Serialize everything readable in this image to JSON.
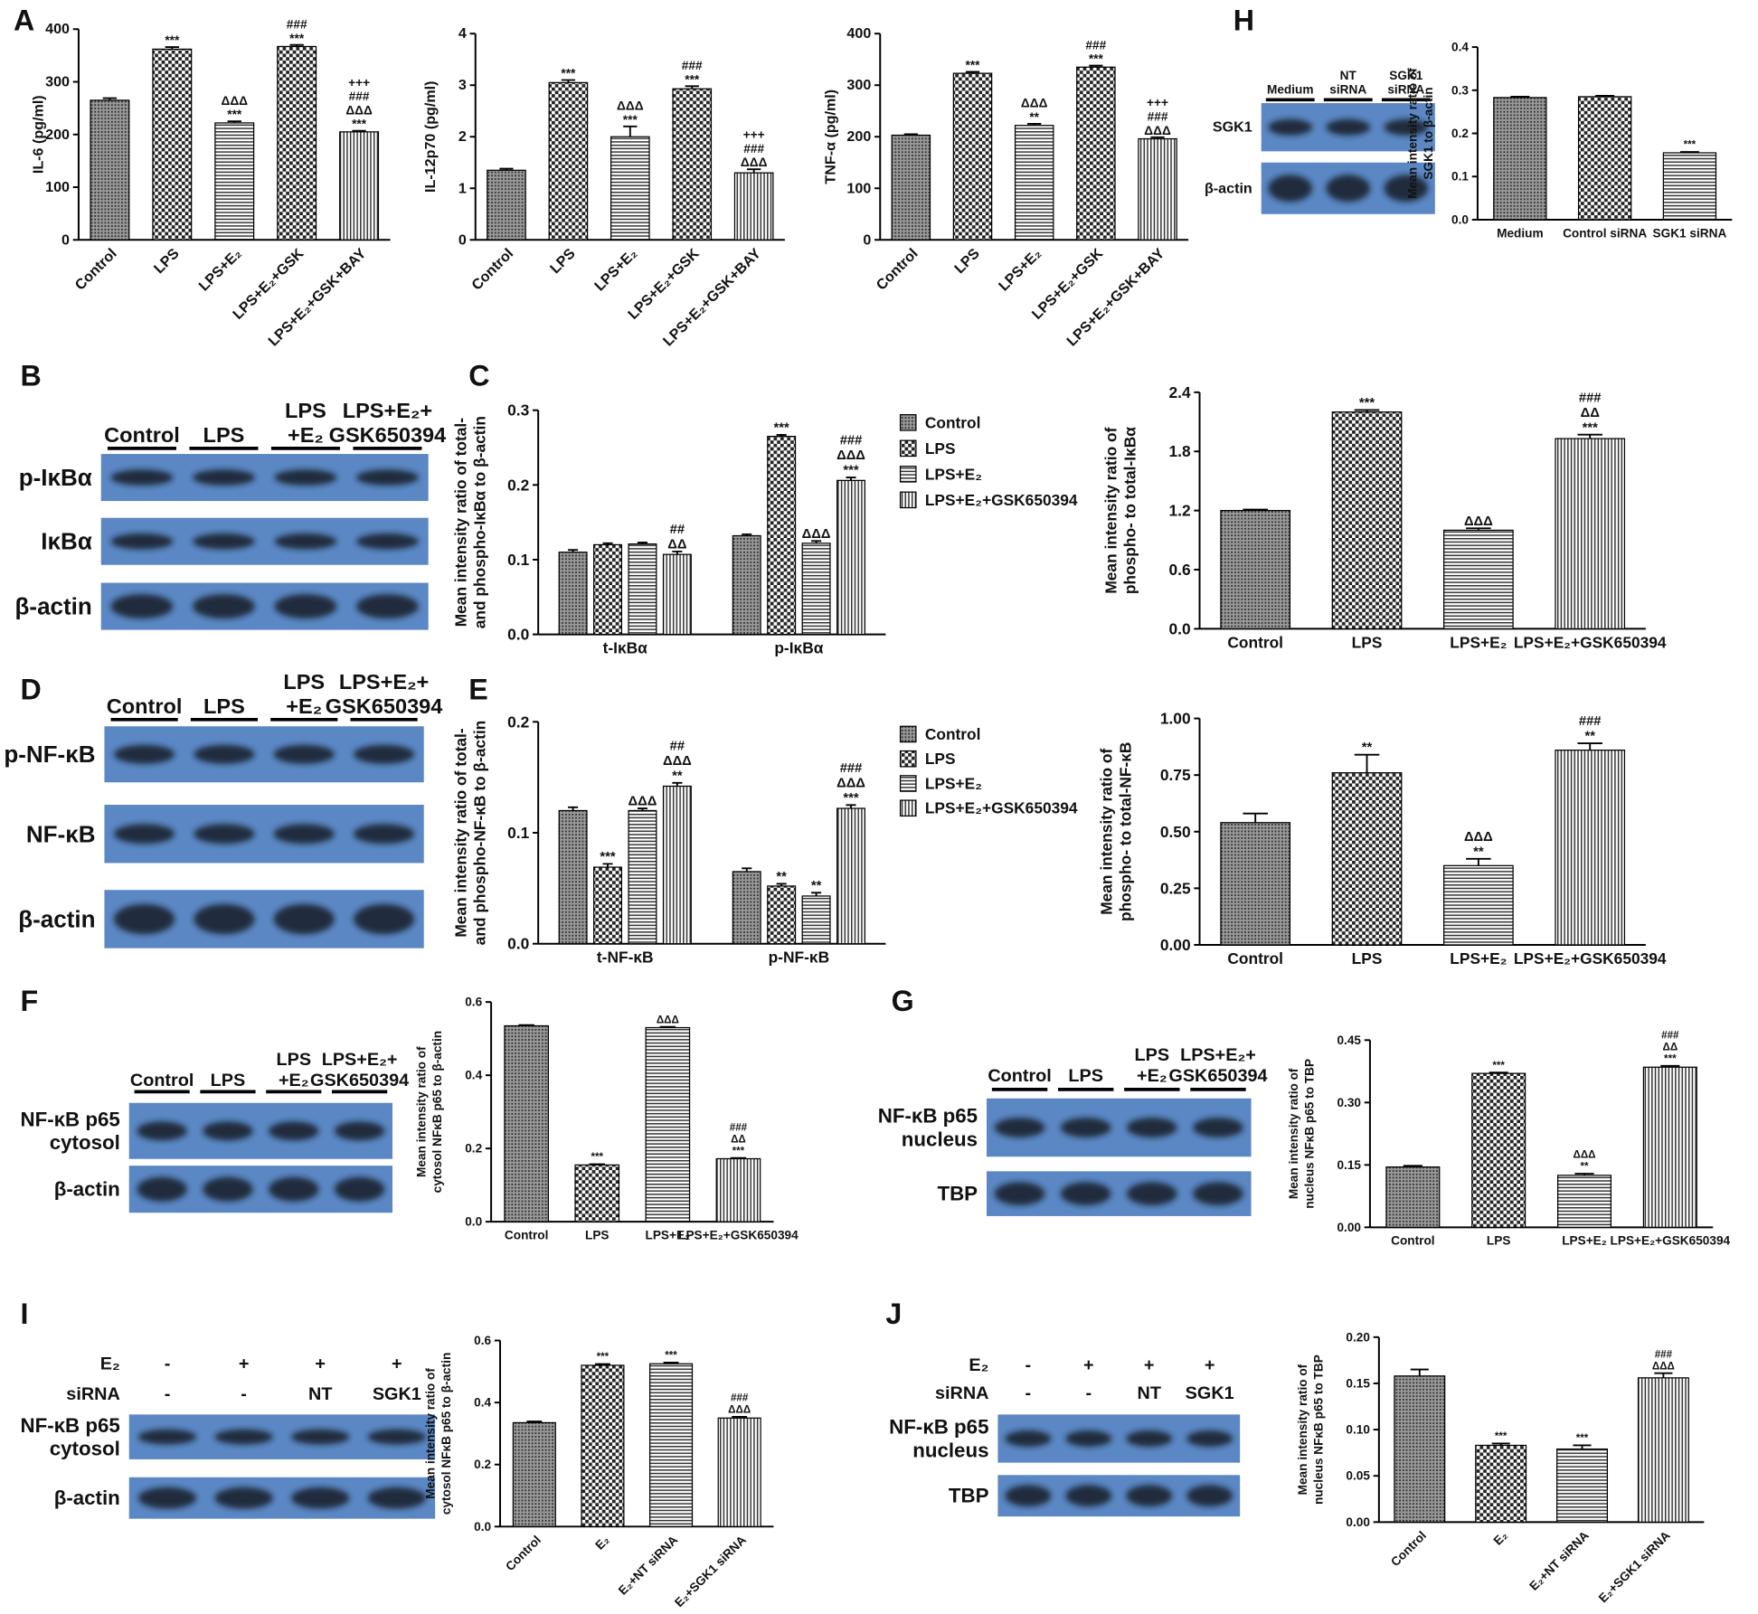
{
  "panel_labels": [
    "A",
    "B",
    "C",
    "D",
    "E",
    "F",
    "G",
    "H",
    "I",
    "J"
  ],
  "blots": [
    {
      "lanes": [
        [
          "Control"
        ],
        [
          "LPS"
        ],
        [
          "LPS",
          "+E₂"
        ],
        [
          "LPS+E₂+",
          "GSK650394"
        ]
      ],
      "rows": [
        [
          "p-IκBα"
        ],
        [
          "IκBα"
        ],
        [
          "β-actin"
        ]
      ]
    },
    {
      "lanes": [
        [
          "Control"
        ],
        [
          "LPS"
        ],
        [
          "LPS",
          "+E₂"
        ],
        [
          "LPS+E₂+",
          "GSK650394"
        ]
      ],
      "rows": [
        [
          "p-NF-κB"
        ],
        [
          "NF-κB"
        ],
        [
          "β-actin"
        ]
      ]
    },
    {
      "lanes": [
        [
          "Control"
        ],
        [
          "LPS"
        ],
        [
          "LPS",
          "+E₂"
        ],
        [
          "LPS+E₂+",
          "GSK650394"
        ]
      ],
      "rows": [
        [
          "NF-κB p65",
          "cytosol"
        ],
        [
          "β-actin"
        ]
      ]
    },
    {
      "lanes": [
        [
          "Control"
        ],
        [
          "LPS"
        ],
        [
          "LPS",
          "+E₂"
        ],
        [
          "LPS+E₂+",
          "GSK650394"
        ]
      ],
      "rows": [
        [
          "NF-κB p65",
          "nucleus"
        ],
        [
          "TBP"
        ]
      ]
    },
    {
      "lanes": [
        [
          "Medium"
        ],
        [
          "NT",
          "siRNA"
        ],
        [
          "SGK1",
          "siRNA"
        ]
      ],
      "rows": [
        [
          "SGK1"
        ],
        [
          "β-actin"
        ]
      ]
    },
    {
      "conditions": [
        {
          "label": "E₂",
          "values": [
            "-",
            "+",
            "+",
            "+"
          ]
        },
        {
          "label": "siRNA",
          "values": [
            "-",
            "-",
            "NT",
            "SGK1"
          ]
        }
      ],
      "rows": [
        [
          "NF-κB p65",
          "cytosol"
        ],
        [
          "β-actin"
        ]
      ]
    },
    {
      "conditions": [
        {
          "label": "E₂",
          "values": [
            "-",
            "+",
            "+",
            "+"
          ]
        },
        {
          "label": "siRNA",
          "values": [
            "-",
            "-",
            "NT",
            "SGK1"
          ]
        }
      ],
      "rows": [
        [
          "NF-κB p65",
          "nucleus"
        ],
        [
          "TBP"
        ]
      ]
    }
  ],
  "chart_data": [
    {
      "type": "bar",
      "ylabel": [
        "IL-6 (pg/ml)"
      ],
      "categories": [
        "Control",
        "LPS",
        "LPS+E₂",
        "LPS+E₂+GSK",
        "LPS+E₂+GSK+BAY"
      ],
      "values": [
        265,
        362,
        222,
        367,
        205
      ],
      "errors": [
        4,
        4,
        3,
        3,
        2
      ],
      "annotations": [
        [],
        [
          "***"
        ],
        [
          "ΔΔΔ",
          "***"
        ],
        [
          "###",
          "***"
        ],
        [
          "+++",
          "###",
          "ΔΔΔ",
          "***"
        ]
      ],
      "patterns": [
        "dots",
        "check",
        "hlines",
        "check",
        "vlines"
      ],
      "ylim": [
        0,
        400
      ],
      "yticks": [
        0,
        100,
        200,
        300,
        400
      ]
    },
    {
      "type": "bar",
      "ylabel": [
        "IL-12p70 (pg/ml)"
      ],
      "categories": [
        "Control",
        "LPS",
        "LPS+E₂",
        "LPS+E₂+GSK",
        "LPS+E₂+GSK+BAY"
      ],
      "values": [
        1.35,
        3.05,
        2.0,
        2.93,
        1.3
      ],
      "errors": [
        0.03,
        0.05,
        0.2,
        0.05,
        0.07
      ],
      "annotations": [
        [],
        [
          "***"
        ],
        [
          "ΔΔΔ",
          "***"
        ],
        [
          "###",
          "***"
        ],
        [
          "+++",
          "###",
          "ΔΔΔ"
        ]
      ],
      "patterns": [
        "dots",
        "check",
        "hlines",
        "check",
        "vlines"
      ],
      "ylim": [
        0,
        4
      ],
      "yticks": [
        0,
        1,
        2,
        3,
        4
      ]
    },
    {
      "type": "bar",
      "ylabel": [
        "TNF-α (pg/ml)"
      ],
      "categories": [
        "Control",
        "LPS",
        "LPS+E₂",
        "LPS+E₂+GSK",
        "LPS+E₂+GSK+BAY"
      ],
      "values": [
        203,
        323,
        222,
        335,
        196
      ],
      "errors": [
        2,
        3,
        3,
        3,
        3
      ],
      "annotations": [
        [],
        [
          "***"
        ],
        [
          "ΔΔΔ",
          "**"
        ],
        [
          "###",
          "***"
        ],
        [
          "+++",
          "###",
          "ΔΔΔ"
        ]
      ],
      "patterns": [
        "dots",
        "check",
        "hlines",
        "check",
        "vlines"
      ],
      "ylim": [
        0,
        400
      ],
      "yticks": [
        0,
        100,
        200,
        300,
        400
      ]
    },
    {
      "type": "bar",
      "ylabel": [
        "Mean intensity ratio of",
        "SGK1 to β-actin"
      ],
      "categories": [
        "Medium",
        "Control siRNA",
        "SGK1 siRNA"
      ],
      "values": [
        0.283,
        0.285,
        0.155
      ],
      "errors": [
        0.002,
        0.002,
        0.002
      ],
      "annotations": [
        [],
        [],
        [
          "***"
        ]
      ],
      "patterns": [
        "dots",
        "check",
        "hlines"
      ],
      "ylim": [
        0,
        0.4
      ],
      "yticks": [
        {
          "value": 0,
          "label": "0.0"
        },
        0.1,
        0.2,
        0.3,
        0.4
      ]
    },
    {
      "type": "grouped-bar",
      "ylabel": [
        "Mean intensity ratio of total-",
        "and phospho-IκBα to β-actin"
      ],
      "categories": [
        "t-IκBα",
        "p-IκBα"
      ],
      "series": [
        {
          "name": "Control",
          "pattern": "dots",
          "values": [
            0.11,
            0.132
          ],
          "errors": [
            0.003,
            0.002
          ],
          "annotations": [
            [],
            []
          ]
        },
        {
          "name": "LPS",
          "pattern": "check",
          "values": [
            0.12,
            0.265
          ],
          "errors": [
            0.002,
            0.002
          ],
          "annotations": [
            [],
            [
              "***"
            ]
          ]
        },
        {
          "name": "LPS+E₂",
          "pattern": "hlines",
          "values": [
            0.121,
            0.122
          ],
          "errors": [
            0.002,
            0.003
          ],
          "annotations": [
            [],
            [
              "ΔΔΔ"
            ]
          ]
        },
        {
          "name": "LPS+E₂+GSK650394",
          "pattern": "vlines",
          "values": [
            0.107,
            0.206
          ],
          "errors": [
            0.004,
            0.004
          ],
          "annotations": [
            [
              "##",
              "ΔΔ"
            ],
            [
              "###",
              "ΔΔΔ",
              "***"
            ]
          ]
        }
      ],
      "ylim": [
        0,
        0.3
      ],
      "yticks": [
        {
          "value": 0,
          "label": "0.0"
        },
        0.1,
        0.2,
        0.3
      ]
    },
    {
      "type": "bar",
      "ylabel": [
        "Mean intensity ratio of",
        "phospho- to total-IκBα"
      ],
      "categories": [
        "Control",
        "LPS",
        "LPS+E₂",
        "LPS+E₂+GSK650394"
      ],
      "values": [
        1.2,
        2.2,
        1.0,
        1.93
      ],
      "errors": [
        0.01,
        0.02,
        0.02,
        0.04
      ],
      "annotations": [
        [],
        [
          "***"
        ],
        [
          "ΔΔΔ"
        ],
        [
          "###",
          "ΔΔ",
          "***"
        ]
      ],
      "patterns": [
        "dots",
        "check",
        "hlines",
        "vlines"
      ],
      "ylim": [
        0,
        2.4
      ],
      "yticks": [
        {
          "value": 0,
          "label": "0.0"
        },
        0.6,
        1.2,
        1.8,
        2.4
      ]
    },
    {
      "type": "grouped-bar",
      "ylabel": [
        "Mean intensity ratio of total-",
        "and phospho-NF-κB to β-actin"
      ],
      "categories": [
        "t-NF-κB",
        "p-NF-κB"
      ],
      "series": [
        {
          "name": "Control",
          "pattern": "dots",
          "values": [
            0.12,
            0.065
          ],
          "errors": [
            0.003,
            0.003
          ],
          "annotations": [
            [],
            []
          ]
        },
        {
          "name": "LPS",
          "pattern": "check",
          "values": [
            0.069,
            0.052
          ],
          "errors": [
            0.003,
            0.002
          ],
          "annotations": [
            [
              "***"
            ],
            [
              "**"
            ]
          ]
        },
        {
          "name": "LPS+E₂",
          "pattern": "hlines",
          "values": [
            0.12,
            0.043
          ],
          "errors": [
            0.002,
            0.003
          ],
          "annotations": [
            [
              "ΔΔΔ"
            ],
            [
              "**"
            ]
          ]
        },
        {
          "name": "LPS+E₂+GSK650394",
          "pattern": "vlines",
          "values": [
            0.142,
            0.122
          ],
          "errors": [
            0.003,
            0.003
          ],
          "annotations": [
            [
              "##",
              "ΔΔΔ",
              "**"
            ],
            [
              "###",
              "ΔΔΔ",
              "***"
            ]
          ]
        }
      ],
      "ylim": [
        0,
        0.2
      ],
      "yticks": [
        {
          "value": 0,
          "label": "0.0"
        },
        0.1,
        0.2
      ]
    },
    {
      "type": "bar",
      "ylabel": [
        "Mean intensity ratio of",
        "phospho- to total-NF-κB"
      ],
      "categories": [
        "Control",
        "LPS",
        "LPS+E₂",
        "LPS+E₂+GSK650394"
      ],
      "values": [
        0.54,
        0.76,
        0.35,
        0.86
      ],
      "errors": [
        0.04,
        0.08,
        0.03,
        0.03
      ],
      "annotations": [
        [],
        [
          "**"
        ],
        [
          "ΔΔΔ",
          "**"
        ],
        [
          "###",
          "**"
        ]
      ],
      "patterns": [
        "dots",
        "check",
        "hlines",
        "vlines"
      ],
      "ylim": [
        0,
        1
      ],
      "yticks": [
        {
          "value": 0,
          "label": "0.00"
        },
        0.25,
        {
          "value": 0.5,
          "label": "0.50"
        },
        0.75,
        {
          "value": 1,
          "label": "1.00"
        }
      ]
    },
    {
      "type": "bar",
      "ylabel": [
        "Mean intensity ratio of",
        "cytosol NFκB p65 to β-actin"
      ],
      "categories": [
        "Control",
        "LPS",
        "LPS+E₂",
        "LPS+E₂+GSK650394"
      ],
      "values": [
        0.535,
        0.155,
        0.53,
        0.172
      ],
      "errors": [
        0.002,
        0.002,
        0.002,
        0.002
      ],
      "annotations": [
        [],
        [
          "***"
        ],
        [
          "ΔΔΔ"
        ],
        [
          "###",
          "ΔΔ",
          "***"
        ]
      ],
      "patterns": [
        "dots",
        "check",
        "hlines",
        "vlines"
      ],
      "ylim": [
        0,
        0.6
      ],
      "yticks": [
        {
          "value": 0,
          "label": "0.0"
        },
        0.2,
        0.4,
        0.6
      ]
    },
    {
      "type": "bar",
      "ylabel": [
        "Mean intensity ratio of",
        "nucleus NFκB p65 to TBP"
      ],
      "categories": [
        "Control",
        "LPS",
        "LPS+E₂",
        "LPS+E₂+GSK650394"
      ],
      "values": [
        0.145,
        0.37,
        0.125,
        0.385
      ],
      "errors": [
        0.003,
        0.002,
        0.004,
        0.003
      ],
      "annotations": [
        [],
        [
          "***"
        ],
        [
          "ΔΔΔ",
          "**"
        ],
        [
          "###",
          "ΔΔ",
          "***"
        ]
      ],
      "patterns": [
        "dots",
        "check",
        "hlines",
        "vlines"
      ],
      "ylim": [
        0,
        0.45
      ],
      "yticks": [
        {
          "value": 0,
          "label": "0.00"
        },
        0.15,
        {
          "value": 0.3,
          "label": "0.30"
        },
        0.45
      ]
    },
    {
      "type": "bar",
      "ylabel": [
        "Mean intensity ratio of",
        "cytosol NFκB p65 to β-actin"
      ],
      "categories": [
        "Control",
        "E₂",
        "E₂+NT siRNA",
        "E₂+SGK1 siRNA"
      ],
      "values": [
        0.335,
        0.52,
        0.525,
        0.35
      ],
      "errors": [
        0.004,
        0.004,
        0.004,
        0.004
      ],
      "annotations": [
        [],
        [
          "***"
        ],
        [
          "***"
        ],
        [
          "###",
          "ΔΔΔ"
        ]
      ],
      "patterns": [
        "dots",
        "check",
        "hlines",
        "vlines"
      ],
      "ylim": [
        0,
        0.6
      ],
      "yticks": [
        {
          "value": 0,
          "label": "0.0"
        },
        0.2,
        0.4,
        0.6
      ]
    },
    {
      "type": "bar",
      "ylabel": [
        "Mean intensity ratio of",
        "nucleus NFκB p65 to TBP"
      ],
      "categories": [
        "Control",
        "E₂",
        "E₂+NT siRNA",
        "E₂+SGK1 siRNA"
      ],
      "values": [
        0.158,
        0.083,
        0.079,
        0.156
      ],
      "errors": [
        0.007,
        0.002,
        0.004,
        0.005
      ],
      "annotations": [
        [],
        [
          "***"
        ],
        [
          "***"
        ],
        [
          "###",
          "ΔΔΔ"
        ]
      ],
      "patterns": [
        "dots",
        "check",
        "hlines",
        "vlines"
      ],
      "ylim": [
        0,
        0.2
      ],
      "yticks": [
        {
          "value": 0,
          "label": "0.00"
        },
        0.05,
        {
          "value": 0.1,
          "label": "0.10"
        },
        0.15,
        {
          "value": 0.2,
          "label": "0.20"
        }
      ]
    }
  ]
}
